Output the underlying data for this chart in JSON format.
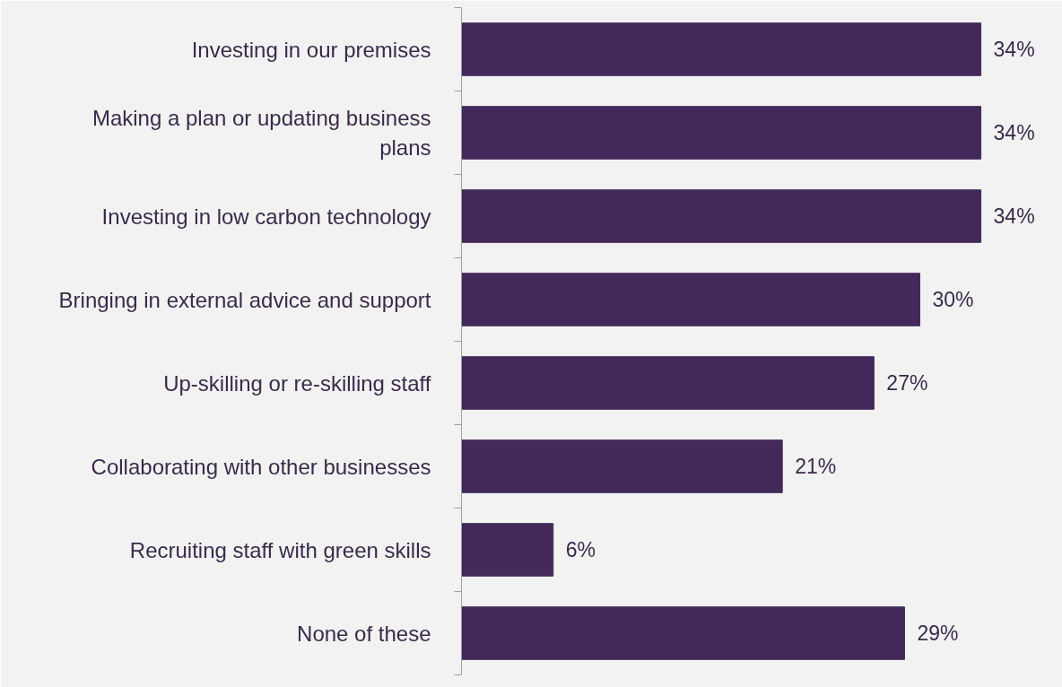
{
  "chart_data": {
    "type": "bar",
    "orientation": "horizontal",
    "value_labels": [
      "34%",
      "34%",
      "34%",
      "30%",
      "27%",
      "21%",
      "6%",
      "29%"
    ],
    "categories": [
      "Investing in our premises",
      "Making a plan or updating business plans",
      "Investing in low carbon technology",
      "Bringing in external advice and support",
      "Up-skilling or re-skilling staff",
      "Collaborating with other businesses",
      "Recruiting staff with green skills",
      "None of these"
    ],
    "values": [
      34,
      34,
      34,
      30,
      27,
      21,
      6,
      29
    ],
    "color": "#42295a"
  }
}
